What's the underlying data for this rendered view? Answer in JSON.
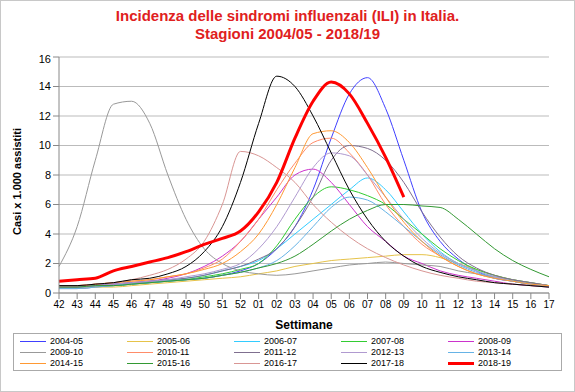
{
  "chart_data": {
    "type": "line",
    "title": "Incidenza delle sindromi influenzali (ILI) in Italia.\nStagioni 2004/05 - 2018/19",
    "x_label": "Settimane",
    "y_label": "Casi x 1.000 assistiti",
    "categories": [
      "42",
      "43",
      "44",
      "45",
      "46",
      "47",
      "48",
      "49",
      "50",
      "51",
      "52",
      "01",
      "02",
      "03",
      "04",
      "05",
      "06",
      "07",
      "08",
      "09",
      "10",
      "11",
      "12",
      "13",
      "14",
      "15",
      "16",
      "17"
    ],
    "ylim": [
      0,
      16
    ],
    "yticks": [
      0,
      2,
      4,
      6,
      8,
      10,
      12,
      14,
      16
    ],
    "grid": true,
    "series": [
      {
        "name": "2004-05",
        "color": "#4040ff",
        "values": [
          0.3,
          0.3,
          0.4,
          0.5,
          0.6,
          0.7,
          0.8,
          0.9,
          1.0,
          1.2,
          1.5,
          2.0,
          3.0,
          4.5,
          7.0,
          10.5,
          13.5,
          14.6,
          12.5,
          9.0,
          5.5,
          3.5,
          2.3,
          1.5,
          1.0,
          0.8,
          0.6,
          0.5
        ]
      },
      {
        "name": "2005-06",
        "color": "#e6c34a",
        "values": [
          0.3,
          0.3,
          0.4,
          0.4,
          0.5,
          0.6,
          0.7,
          0.8,
          0.9,
          1.0,
          1.1,
          1.3,
          1.5,
          1.8,
          2.0,
          2.2,
          2.3,
          2.4,
          2.5,
          2.6,
          2.6,
          2.4,
          2.0,
          1.6,
          1.2,
          0.9,
          0.7,
          0.5
        ]
      },
      {
        "name": "2006-07",
        "color": "#33ccff",
        "values": [
          0.4,
          0.4,
          0.5,
          0.6,
          0.7,
          0.8,
          0.9,
          1.0,
          1.2,
          1.5,
          1.8,
          2.2,
          3.0,
          4.0,
          5.0,
          6.0,
          7.0,
          7.8,
          7.0,
          5.5,
          4.0,
          2.8,
          2.0,
          1.5,
          1.1,
          0.8,
          0.6,
          0.5
        ]
      },
      {
        "name": "2007-08",
        "color": "#33cc33",
        "values": [
          0.4,
          0.4,
          0.5,
          0.5,
          0.6,
          0.7,
          0.8,
          0.9,
          1.1,
          1.3,
          1.6,
          2.0,
          3.2,
          5.0,
          6.5,
          7.2,
          7.0,
          6.6,
          6.0,
          5.0,
          4.0,
          3.0,
          2.2,
          1.6,
          1.2,
          0.9,
          0.7,
          0.5
        ]
      },
      {
        "name": "2008-09",
        "color": "#cc33cc",
        "values": [
          0.4,
          0.4,
          0.5,
          0.6,
          0.7,
          0.8,
          1.0,
          1.3,
          1.8,
          2.5,
          3.5,
          5.0,
          6.5,
          8.0,
          8.4,
          7.5,
          6.0,
          4.5,
          3.5,
          2.5,
          2.0,
          1.5,
          1.2,
          1.0,
          0.8,
          0.6,
          0.5,
          0.4
        ]
      },
      {
        "name": "2009-10",
        "color": "#999999",
        "values": [
          1.8,
          4.5,
          9.0,
          12.8,
          13.0,
          11.5,
          8.0,
          5.0,
          3.0,
          2.0,
          1.5,
          1.3,
          1.2,
          1.3,
          1.5,
          1.7,
          1.9,
          2.0,
          2.1,
          2.0,
          1.9,
          1.8,
          1.5,
          1.3,
          1.1,
          0.9,
          0.7,
          0.5
        ]
      },
      {
        "name": "2010-11",
        "color": "#ff8c69",
        "values": [
          0.5,
          0.5,
          0.6,
          0.7,
          0.8,
          0.9,
          1.1,
          1.3,
          1.7,
          2.3,
          3.5,
          5.0,
          7.0,
          8.8,
          10.2,
          10.5,
          9.5,
          8.0,
          6.0,
          4.5,
          3.3,
          2.5,
          1.8,
          1.3,
          1.0,
          0.8,
          0.6,
          0.5
        ]
      },
      {
        "name": "2011-12",
        "color": "#7f6f8f",
        "values": [
          0.4,
          0.4,
          0.5,
          0.6,
          0.7,
          0.8,
          0.9,
          1.0,
          1.2,
          1.5,
          1.8,
          2.3,
          3.0,
          4.5,
          6.5,
          9.0,
          10.0,
          9.8,
          9.0,
          7.5,
          5.5,
          3.8,
          2.5,
          1.7,
          1.2,
          0.9,
          0.7,
          0.5
        ]
      },
      {
        "name": "2012-13",
        "color": "#b09ad0",
        "values": [
          0.4,
          0.4,
          0.5,
          0.6,
          0.7,
          0.8,
          0.9,
          1.1,
          1.3,
          1.6,
          2.0,
          3.0,
          4.5,
          6.5,
          8.5,
          9.5,
          9.3,
          8.0,
          6.5,
          5.0,
          3.7,
          2.7,
          2.0,
          1.5,
          1.1,
          0.8,
          0.6,
          0.5
        ]
      },
      {
        "name": "2013-14",
        "color": "#66b3e6",
        "values": [
          0.3,
          0.3,
          0.4,
          0.5,
          0.6,
          0.7,
          0.8,
          0.9,
          1.0,
          1.2,
          1.4,
          1.7,
          2.2,
          3.2,
          4.5,
          5.8,
          6.5,
          6.3,
          5.5,
          4.5,
          3.5,
          2.6,
          1.9,
          1.4,
          1.0,
          0.8,
          0.6,
          0.4
        ]
      },
      {
        "name": "2014-15",
        "color": "#ff9933",
        "values": [
          0.5,
          0.5,
          0.6,
          0.7,
          0.8,
          0.9,
          1.1,
          1.3,
          1.6,
          2.0,
          2.8,
          4.0,
          6.0,
          8.5,
          10.8,
          11.0,
          10.2,
          8.5,
          6.5,
          4.8,
          3.5,
          2.5,
          1.8,
          1.3,
          1.0,
          0.8,
          0.6,
          0.5
        ]
      },
      {
        "name": "2015-16",
        "color": "#339933",
        "values": [
          0.4,
          0.4,
          0.5,
          0.5,
          0.6,
          0.7,
          0.8,
          0.9,
          1.0,
          1.2,
          1.4,
          1.7,
          2.0,
          2.5,
          3.3,
          4.2,
          5.0,
          5.6,
          6.0,
          6.0,
          5.9,
          5.8,
          5.0,
          4.0,
          3.0,
          2.2,
          1.6,
          1.1
        ]
      },
      {
        "name": "2016-17",
        "color": "#d99694",
        "values": [
          0.5,
          0.5,
          0.6,
          0.7,
          0.9,
          1.2,
          1.6,
          2.3,
          3.5,
          6.0,
          9.6,
          9.3,
          8.5,
          7.5,
          6.0,
          4.8,
          3.8,
          3.0,
          2.4,
          1.9,
          1.5,
          1.2,
          1.0,
          0.8,
          0.7,
          0.6,
          0.5,
          0.4
        ]
      },
      {
        "name": "2017-18",
        "color": "#000000",
        "values": [
          0.5,
          0.5,
          0.6,
          0.7,
          0.9,
          1.0,
          1.3,
          1.8,
          2.8,
          4.5,
          7.5,
          11.5,
          14.7,
          14.0,
          12.0,
          9.5,
          7.0,
          5.0,
          3.5,
          2.5,
          1.8,
          1.4,
          1.1,
          0.9,
          0.7,
          0.6,
          0.5,
          0.4
        ]
      },
      {
        "name": "2018-19",
        "color": "#ff0000",
        "line_style": "thick",
        "values": [
          0.8,
          0.9,
          1.0,
          1.5,
          1.8,
          2.1,
          2.4,
          2.8,
          3.3,
          3.7,
          4.2,
          5.5,
          7.5,
          10.5,
          13.0,
          14.3,
          13.5,
          11.5,
          9.2,
          6.5,
          null,
          null,
          null,
          null,
          null,
          null,
          null,
          null
        ]
      }
    ]
  }
}
